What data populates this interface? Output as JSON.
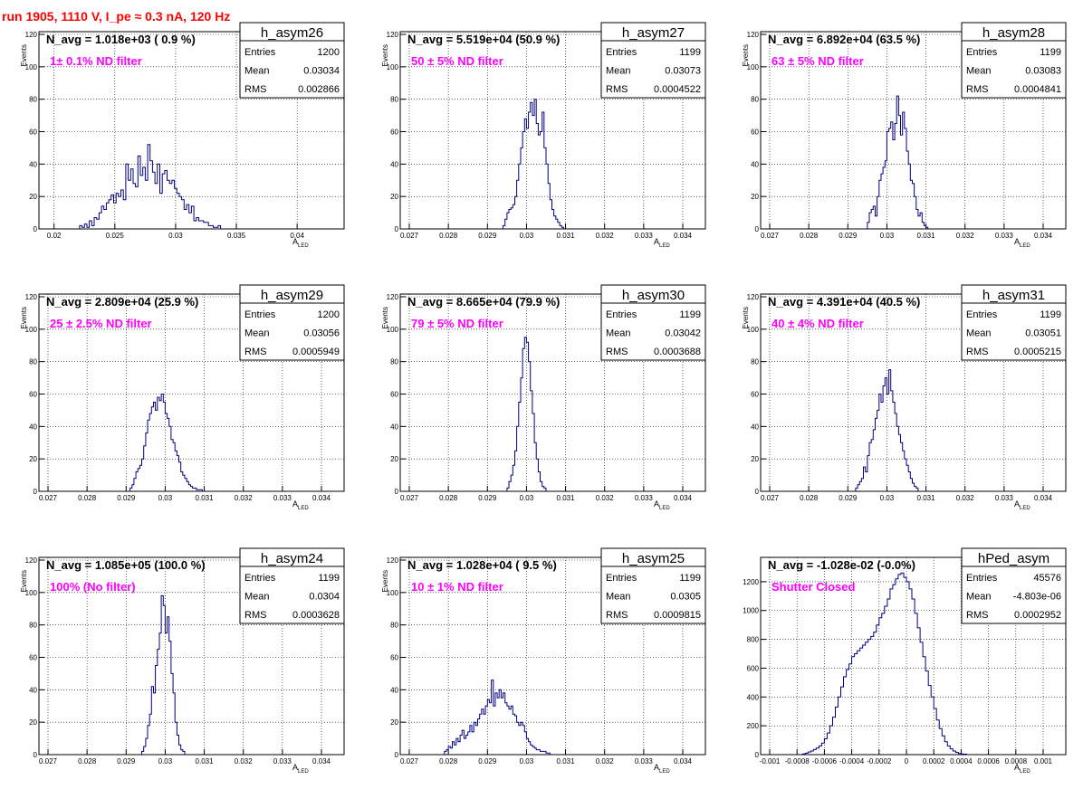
{
  "page_title": "run 1905,  1110 V, I_pe ≈ 0.3 nA, 120 Hz",
  "colors": {
    "hist": "#000080",
    "title": "#ff0000",
    "annotation": "#ff00ff",
    "grid": "#000000"
  },
  "chart_data": [
    {
      "type": "bar",
      "stat_title": "h_asym26",
      "stats": {
        "Entries": "1200",
        "Mean": "0.03034",
        "RMS": "0.002866"
      },
      "navg": "N_avg = 1.018e+03 ( 0.9 %)",
      "annotation": "1± 0.1% ND filter",
      "xlabel": "A_LED",
      "ylabel": "Events",
      "xlim": [
        0.0195,
        0.042
      ],
      "ylim": [
        0,
        120
      ],
      "xticks": [
        0.02,
        0.025,
        0.03,
        0.035,
        0.04
      ],
      "xtick_labels": [
        "0.02",
        "0.025",
        "0.03",
        "0.035",
        "0.04"
      ],
      "yticks": [
        0,
        20,
        40,
        60,
        80,
        100,
        120
      ],
      "ytick_labels": [
        "0",
        "20",
        "40",
        "60",
        "80",
        "100",
        "120"
      ],
      "bin_start": 0.0221,
      "bin_width": 0.0002,
      "counts": [
        2,
        1,
        3,
        1,
        5,
        2,
        7,
        6,
        10,
        14,
        12,
        16,
        18,
        21,
        16,
        22,
        20,
        24,
        18,
        40,
        30,
        37,
        28,
        26,
        45,
        33,
        38,
        30,
        52,
        42,
        35,
        28,
        40,
        22,
        34,
        36,
        30,
        28,
        30,
        25,
        22,
        20,
        18,
        12,
        15,
        10,
        14,
        5,
        7,
        5,
        5,
        4,
        4,
        2,
        2,
        1,
        1,
        2
      ]
    },
    {
      "type": "bar",
      "stat_title": "h_asym27",
      "stats": {
        "Entries": "1199",
        "Mean": "0.03073",
        "RMS": "0.0004522"
      },
      "navg": "N_avg = 5.519e+04 (50.9 %)",
      "annotation": "50 ± 5% ND filter",
      "xlabel": "A_LED",
      "ylabel": "Events",
      "xlim": [
        0.027,
        0.034
      ],
      "ylim": [
        0,
        120
      ],
      "xticks": [
        0.027,
        0.028,
        0.029,
        0.03,
        0.031,
        0.032,
        0.033,
        0.034
      ],
      "xtick_labels": [
        "0.027",
        "0.028",
        "0.029",
        "0.03",
        "0.031",
        "0.032",
        "0.033",
        "0.034"
      ],
      "yticks": [
        0,
        20,
        40,
        60,
        80,
        100,
        120
      ],
      "ytick_labels": [
        "0",
        "20",
        "40",
        "60",
        "80",
        "100",
        "120"
      ],
      "bin_start": 0.0294,
      "bin_width": 5e-05,
      "counts": [
        2,
        6,
        10,
        12,
        13,
        15,
        20,
        30,
        40,
        50,
        60,
        68,
        62,
        72,
        78,
        70,
        80,
        65,
        58,
        60,
        72,
        50,
        40,
        28,
        18,
        12,
        8,
        6,
        4,
        2,
        1
      ]
    },
    {
      "type": "bar",
      "stat_title": "h_asym28",
      "stats": {
        "Entries": "1199",
        "Mean": "0.03083",
        "RMS": "0.0004841"
      },
      "navg": "N_avg = 6.892e+04 (63.5 %)",
      "annotation": "63 ± 5% ND filter",
      "xlabel": "A_LED",
      "ylabel": "Events",
      "xlim": [
        0.027,
        0.034
      ],
      "ylim": [
        0,
        120
      ],
      "xticks": [
        0.027,
        0.028,
        0.029,
        0.03,
        0.031,
        0.032,
        0.033,
        0.034
      ],
      "xtick_labels": [
        "0.027",
        "0.028",
        "0.029",
        "0.03",
        "0.031",
        "0.032",
        "0.033",
        "0.034"
      ],
      "yticks": [
        0,
        20,
        40,
        60,
        80,
        100,
        120
      ],
      "ytick_labels": [
        "0",
        "20",
        "40",
        "60",
        "80",
        "100",
        "120"
      ],
      "bin_start": 0.0295,
      "bin_width": 5e-05,
      "counts": [
        4,
        10,
        12,
        14,
        8,
        20,
        30,
        34,
        38,
        42,
        60,
        62,
        66,
        55,
        65,
        82,
        70,
        58,
        72,
        62,
        48,
        40,
        30,
        28,
        20,
        12,
        8,
        10,
        4,
        2,
        1
      ]
    },
    {
      "type": "bar",
      "stat_title": "h_asym29",
      "stats": {
        "Entries": "1200",
        "Mean": "0.03056",
        "RMS": "0.0005949"
      },
      "navg": "N_avg = 2.809e+04 (25.9 %)",
      "annotation": "25 ± 2.5% ND filter",
      "xlabel": "A_LED",
      "ylabel": "Events",
      "xlim": [
        0.027,
        0.034
      ],
      "ylim": [
        0,
        120
      ],
      "xticks": [
        0.027,
        0.028,
        0.029,
        0.03,
        0.031,
        0.032,
        0.033,
        0.034
      ],
      "xtick_labels": [
        "0.027",
        "0.028",
        "0.029",
        "0.03",
        "0.031",
        "0.032",
        "0.033",
        "0.034"
      ],
      "yticks": [
        0,
        20,
        40,
        60,
        80,
        100,
        120
      ],
      "ytick_labels": [
        "0",
        "20",
        "40",
        "60",
        "80",
        "100",
        "120"
      ],
      "bin_start": 0.0291,
      "bin_width": 5e-05,
      "counts": [
        2,
        4,
        8,
        12,
        14,
        16,
        20,
        28,
        36,
        44,
        48,
        52,
        55,
        50,
        58,
        56,
        60,
        55,
        48,
        45,
        40,
        32,
        30,
        25,
        22,
        18,
        12,
        10,
        8,
        6,
        4,
        3,
        2,
        2,
        1,
        1,
        1
      ]
    },
    {
      "type": "bar",
      "stat_title": "h_asym30",
      "stats": {
        "Entries": "1199",
        "Mean": "0.03042",
        "RMS": "0.0003688"
      },
      "navg": "N_avg = 8.665e+04 (79.9 %)",
      "annotation": "79 ± 5% ND filter",
      "xlabel": "A_LED",
      "ylabel": "Events",
      "xlim": [
        0.027,
        0.034
      ],
      "ylim": [
        0,
        120
      ],
      "xticks": [
        0.027,
        0.028,
        0.029,
        0.03,
        0.031,
        0.032,
        0.033,
        0.034
      ],
      "xtick_labels": [
        "0.027",
        "0.028",
        "0.029",
        "0.03",
        "0.031",
        "0.032",
        "0.033",
        "0.034"
      ],
      "yticks": [
        0,
        20,
        40,
        60,
        80,
        100,
        120
      ],
      "ytick_labels": [
        "0",
        "20",
        "40",
        "60",
        "80",
        "100",
        "120"
      ],
      "bin_start": 0.0295,
      "bin_width": 5e-05,
      "counts": [
        2,
        6,
        10,
        16,
        25,
        40,
        55,
        70,
        88,
        95,
        92,
        80,
        62,
        48,
        30,
        20,
        12,
        6,
        3,
        2
      ]
    },
    {
      "type": "bar",
      "stat_title": "h_asym31",
      "stats": {
        "Entries": "1199",
        "Mean": "0.03051",
        "RMS": "0.0005215"
      },
      "navg": "N_avg = 4.391e+04 (40.5 %)",
      "annotation": "40 ± 4% ND filter",
      "xlabel": "A_LED",
      "ylabel": "Events",
      "xlim": [
        0.027,
        0.034
      ],
      "ylim": [
        0,
        120
      ],
      "xticks": [
        0.027,
        0.028,
        0.029,
        0.03,
        0.031,
        0.032,
        0.033,
        0.034
      ],
      "xtick_labels": [
        "0.027",
        "0.028",
        "0.029",
        "0.03",
        "0.031",
        "0.032",
        "0.033",
        "0.034"
      ],
      "yticks": [
        0,
        20,
        40,
        60,
        80,
        100,
        120
      ],
      "ytick_labels": [
        "0",
        "20",
        "40",
        "60",
        "80",
        "100",
        "120"
      ],
      "bin_start": 0.0292,
      "bin_width": 5e-05,
      "counts": [
        2,
        4,
        6,
        8,
        15,
        12,
        22,
        30,
        32,
        38,
        45,
        50,
        60,
        55,
        65,
        70,
        60,
        75,
        62,
        55,
        48,
        40,
        35,
        30,
        25,
        20,
        16,
        12,
        8,
        5,
        3,
        2
      ]
    },
    {
      "type": "bar",
      "stat_title": "h_asym24",
      "stats": {
        "Entries": "1199",
        "Mean": "0.0304",
        "RMS": "0.0003628"
      },
      "navg": "N_avg = 1.085e+05 (100.0 %)",
      "annotation": "100% (No filter)",
      "xlabel": "A_LED",
      "ylabel": "Events",
      "xlim": [
        0.027,
        0.034
      ],
      "ylim": [
        0,
        120
      ],
      "xticks": [
        0.027,
        0.028,
        0.029,
        0.03,
        0.031,
        0.032,
        0.033,
        0.034
      ],
      "xtick_labels": [
        "0.027",
        "0.028",
        "0.029",
        "0.03",
        "0.031",
        "0.032",
        "0.033",
        "0.034"
      ],
      "yticks": [
        0,
        20,
        40,
        60,
        80,
        100,
        120
      ],
      "ytick_labels": [
        "0",
        "20",
        "40",
        "60",
        "80",
        "100",
        "120"
      ],
      "bin_start": 0.0294,
      "bin_width": 5e-05,
      "counts": [
        2,
        5,
        10,
        18,
        25,
        42,
        38,
        55,
        65,
        75,
        98,
        92,
        75,
        85,
        70,
        50,
        38,
        20,
        12,
        6,
        3,
        2
      ]
    },
    {
      "type": "bar",
      "stat_title": "h_asym25",
      "stats": {
        "Entries": "1199",
        "Mean": "0.0305",
        "RMS": "0.0009815"
      },
      "navg": "N_avg = 1.028e+04 ( 9.5 %)",
      "annotation": "10 ± 1% ND filter",
      "xlabel": "A_LED",
      "ylabel": "Events",
      "xlim": [
        0.027,
        0.034
      ],
      "ylim": [
        0,
        120
      ],
      "xticks": [
        0.027,
        0.028,
        0.029,
        0.03,
        0.031,
        0.032,
        0.033,
        0.034
      ],
      "xtick_labels": [
        "0.027",
        "0.028",
        "0.029",
        "0.03",
        "0.031",
        "0.032",
        "0.033",
        "0.034"
      ],
      "yticks": [
        0,
        20,
        40,
        60,
        80,
        100,
        120
      ],
      "ytick_labels": [
        "0",
        "20",
        "40",
        "60",
        "80",
        "100",
        "120"
      ],
      "bin_start": 0.0279,
      "bin_width": 5e-05,
      "counts": [
        2,
        3,
        5,
        4,
        8,
        6,
        10,
        8,
        12,
        15,
        10,
        12,
        14,
        18,
        14,
        20,
        18,
        22,
        25,
        28,
        25,
        30,
        34,
        32,
        46,
        30,
        38,
        35,
        40,
        35,
        38,
        32,
        30,
        28,
        30,
        25,
        24,
        20,
        18,
        20,
        18,
        14,
        10,
        8,
        6,
        5,
        4,
        3,
        3,
        2,
        2,
        2,
        1,
        1
      ]
    },
    {
      "type": "bar",
      "stat_title": "hPed_asym",
      "stats": {
        "Entries": "45576",
        "Mean": "-4.803e-06",
        "RMS": "0.0002952"
      },
      "navg": "N_avg = -1.028e-02 (-0.0%)",
      "annotation": "Shutter Closed",
      "xlabel": "A_LED",
      "ylabel": "",
      "xlim": [
        -0.001,
        0.001
      ],
      "ylim": [
        0,
        1350
      ],
      "xticks": [
        -0.001,
        -0.0008,
        -0.0006,
        -0.0004,
        -0.0002,
        0,
        0.0002,
        0.0004,
        0.0006,
        0.0008,
        0.001
      ],
      "xtick_labels": [
        "-0.001",
        "-0.0008",
        "-0.0006",
        "-0.0004",
        "-0.0002",
        "0",
        "0.0002",
        "0.0004",
        "0.0006",
        "0.0008",
        "0.001"
      ],
      "yticks": [
        0,
        200,
        400,
        600,
        800,
        1000,
        1200
      ],
      "ytick_labels": [
        "0",
        "200",
        "400",
        "600",
        "800",
        "1000",
        "1200"
      ],
      "bin_start": -0.00076,
      "bin_width": 2e-05,
      "counts": [
        5,
        10,
        18,
        25,
        35,
        45,
        60,
        80,
        110,
        150,
        200,
        260,
        330,
        400,
        470,
        540,
        590,
        630,
        680,
        700,
        720,
        740,
        760,
        780,
        800,
        820,
        850,
        900,
        950,
        980,
        1030,
        1080,
        1150,
        1180,
        1220,
        1250,
        1260,
        1230,
        1200,
        1150,
        1080,
        980,
        880,
        780,
        680,
        580,
        480,
        400,
        320,
        240,
        180,
        130,
        90,
        60,
        40,
        25,
        15,
        8,
        5,
        3
      ]
    }
  ]
}
